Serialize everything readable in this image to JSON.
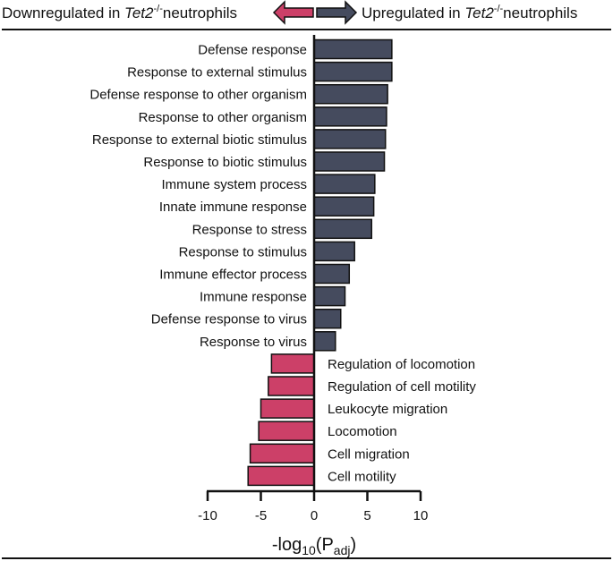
{
  "header": {
    "left": {
      "prefix": "Downregulated in ",
      "gene": "Tet2",
      "superscript": "-/-",
      "suffix": "neutrophils"
    },
    "right": {
      "prefix": "Upregulated in ",
      "gene": "Tet2",
      "superscript": "-/-",
      "suffix": "neutrophils"
    }
  },
  "colors": {
    "up": "#454b5e",
    "down": "#cc4068",
    "axis": "#111111"
  },
  "chart_data": {
    "type": "bar",
    "orientation": "horizontal",
    "categories": [
      "Defense response",
      "Response to external stimulus",
      "Defense response to other organism",
      "Response to other organism",
      "Response to external biotic stimulus",
      "Response to biotic stimulus",
      "Immune system process",
      "Innate immune response",
      "Response to stress",
      "Response to stimulus",
      "Immune effector process",
      "Immune response",
      "Defense response to virus",
      "Response to virus",
      "Regulation of locomotion",
      "Regulation of cell motility",
      "Leukocyte migration",
      "Locomotion",
      "Cell migration",
      "Cell motility"
    ],
    "values": [
      7.3,
      7.3,
      6.9,
      6.8,
      6.7,
      6.6,
      5.7,
      5.6,
      5.4,
      3.8,
      3.3,
      2.9,
      2.5,
      2.0,
      -4.0,
      -4.3,
      -5.0,
      -5.2,
      -6.0,
      -6.2
    ],
    "xlabel": {
      "prefix": "-log",
      "sub1": "10",
      "mid": "(P",
      "sub2": "adj",
      "suffix": ")"
    },
    "xlim": [
      -10,
      10
    ],
    "xticks": [
      "-10",
      "-5",
      "0",
      "5",
      "10"
    ],
    "grid": false,
    "legend": "none"
  }
}
